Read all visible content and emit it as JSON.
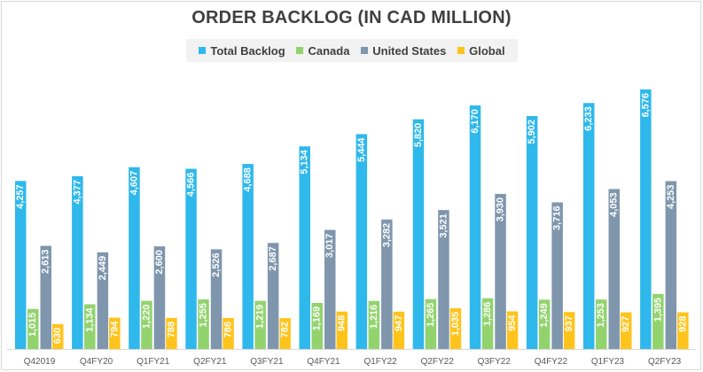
{
  "chart_data": {
    "type": "bar",
    "title": "ORDER BACKLOG (IN CAD MILLION)",
    "xlabel": "",
    "ylabel": "",
    "ylim": [
      0,
      6600
    ],
    "grid": false,
    "legend_position": "top",
    "categories": [
      "Q42019",
      "Q4FY20",
      "Q1FY21",
      "Q2FY21",
      "Q3FY21",
      "Q4FY21",
      "Q1FY22",
      "Q2FY22",
      "Q3FY22",
      "Q4FY22",
      "Q1FY23",
      "Q2FY23"
    ],
    "series": [
      {
        "name": "Total Backlog",
        "color": "#2fb8eb",
        "values": [
          4257,
          4377,
          4607,
          4566,
          4688,
          5134,
          5444,
          5820,
          6170,
          5902,
          6233,
          6576
        ],
        "labels": [
          "4,257",
          "4,377",
          "4,607",
          "4,566",
          "4,688",
          "5,134",
          "5,444",
          "5,820",
          "6,170",
          "5,902",
          "6,233",
          "6,576"
        ]
      },
      {
        "name": "Canada",
        "color": "#92d36e",
        "values": [
          1015,
          1134,
          1220,
          1255,
          1219,
          1169,
          1216,
          1265,
          1286,
          1249,
          1253,
          1395
        ],
        "labels": [
          "1,015",
          "1,134",
          "1,220",
          "1,255",
          "1,219",
          "1,169",
          "1,216",
          "1,265",
          "1,286",
          "1,249",
          "1,253",
          "1,395"
        ]
      },
      {
        "name": "United States",
        "color": "#7f96ad",
        "values": [
          2613,
          2449,
          2600,
          2526,
          2687,
          3017,
          3282,
          3521,
          3930,
          3716,
          4053,
          4253
        ],
        "labels": [
          "2,613",
          "2,449",
          "2,600",
          "2,526",
          "2,687",
          "3,017",
          "3,282",
          "3,521",
          "3,930",
          "3,716",
          "4,053",
          "4,253"
        ]
      },
      {
        "name": "Global",
        "color": "#ffc41c",
        "values": [
          630,
          794,
          788,
          786,
          782,
          948,
          947,
          1035,
          954,
          937,
          927,
          928
        ],
        "labels": [
          "630",
          "794",
          "788",
          "786",
          "782",
          "948",
          "947",
          "1,035",
          "954",
          "937",
          "927",
          "928"
        ]
      }
    ]
  }
}
